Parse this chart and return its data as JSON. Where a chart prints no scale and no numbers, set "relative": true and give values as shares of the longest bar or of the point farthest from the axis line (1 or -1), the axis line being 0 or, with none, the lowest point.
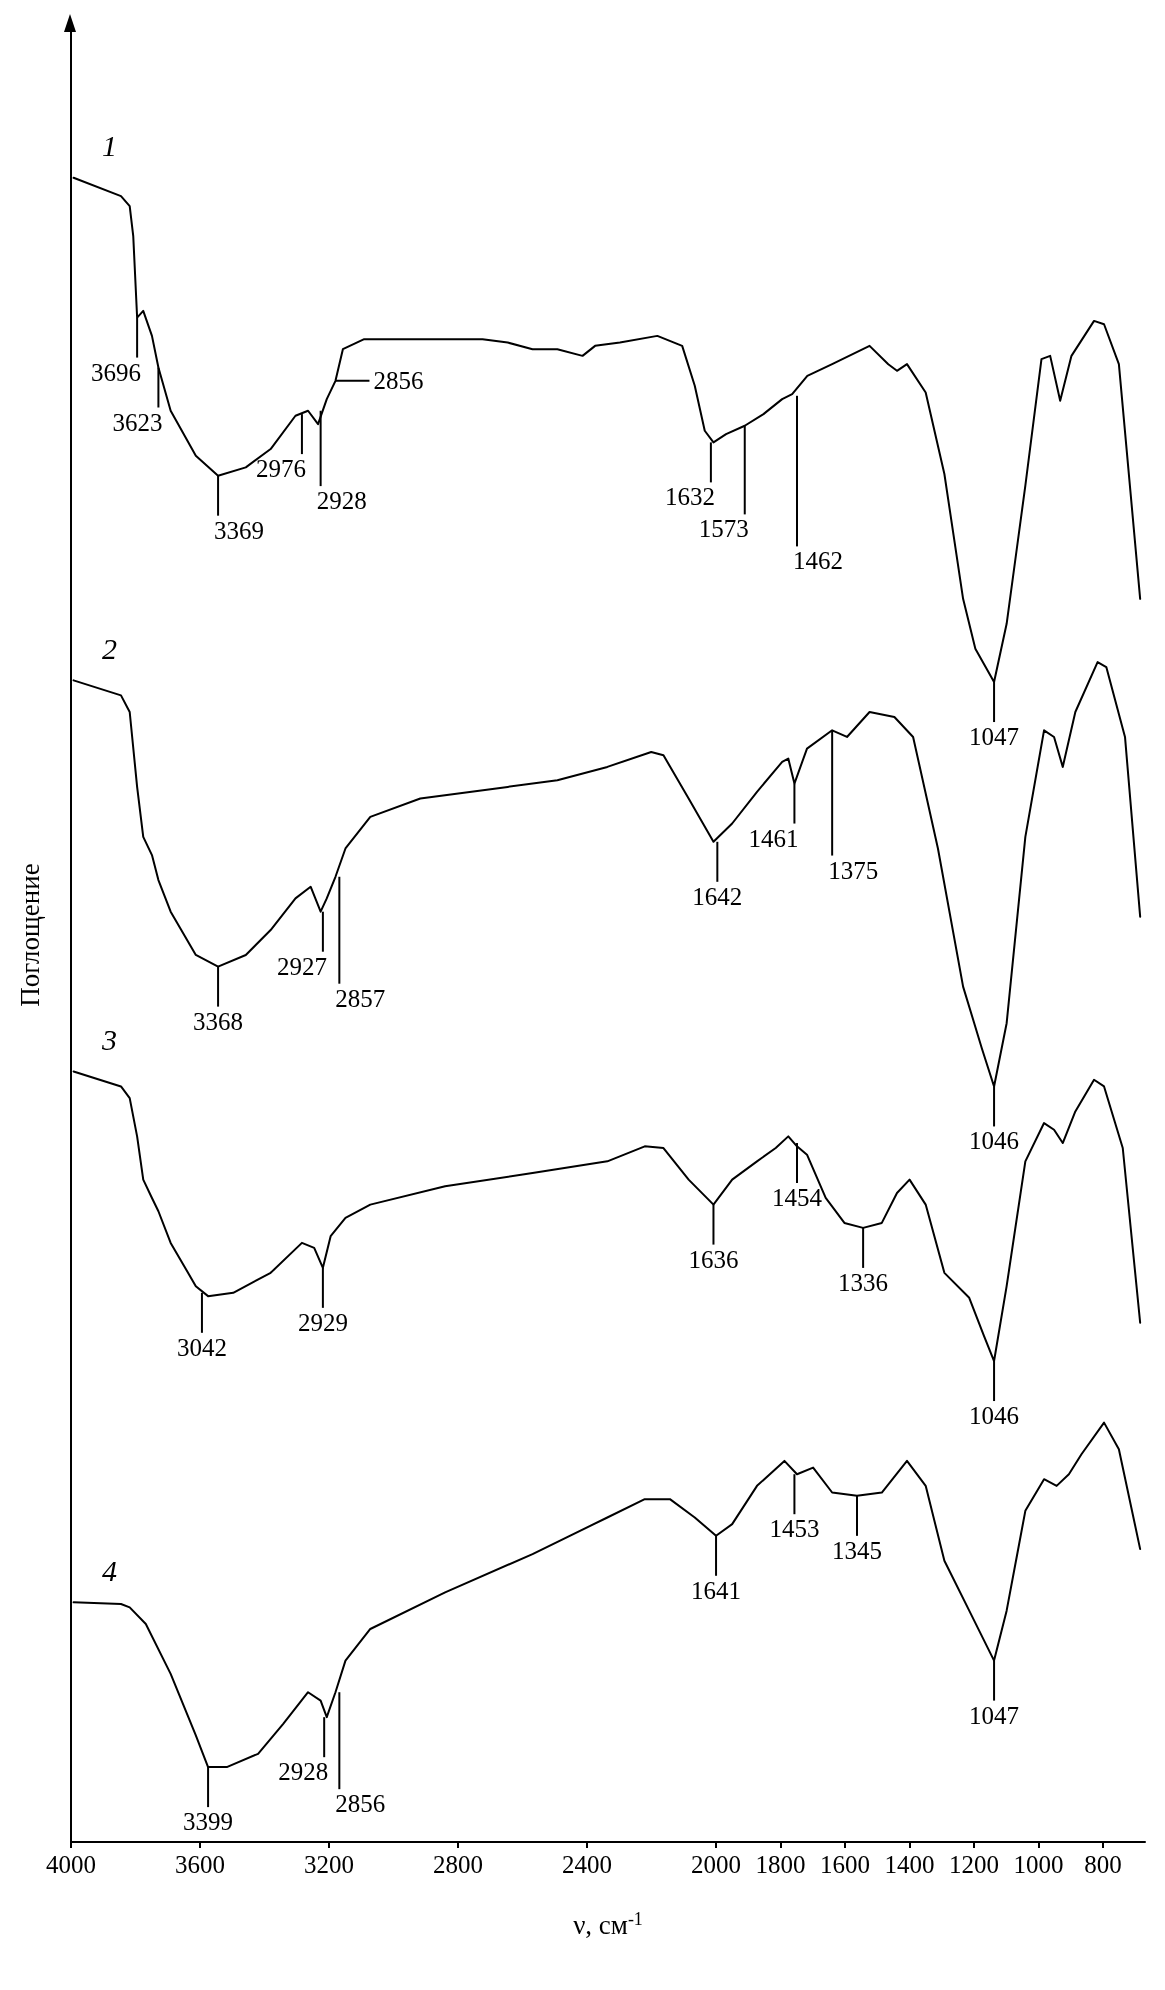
{
  "chart_data": {
    "type": "line",
    "relative": true,
    "xlabel": "ν, см$^{-1}$",
    "ylabel": "Поглощение",
    "xlim": [
      4000,
      670
    ],
    "xticks": [
      4000,
      3600,
      3200,
      2800,
      2400,
      2000,
      1800,
      1600,
      1400,
      1200,
      1000,
      800
    ],
    "grid": false,
    "legend": false,
    "series": [
      {
        "name": "1",
        "color": "#000000",
        "x": [
          3992,
          3845,
          3818,
          3807,
          3795,
          3776,
          3749,
          3729,
          3691,
          3613,
          3544,
          3458,
          3381,
          3304,
          3265,
          3234,
          3207,
          3180,
          3157,
          3091,
          2956,
          2724,
          2646,
          2569,
          2492,
          2414,
          2375,
          2298,
          2182,
          2105,
          2066,
          2035,
          2008,
          1969,
          1911,
          1853,
          1795,
          1764,
          1717,
          1640,
          1524,
          1466,
          1439,
          1408,
          1350,
          1292,
          1234,
          1196,
          1138,
          1099,
          1041,
          991,
          964,
          933,
          898,
          828,
          797,
          751,
          685
        ],
        "values": [
          1.0,
          0.989,
          0.983,
          0.965,
          0.916,
          0.92,
          0.905,
          0.886,
          0.86,
          0.833,
          0.821,
          0.826,
          0.837,
          0.857,
          0.86,
          0.852,
          0.867,
          0.878,
          0.897,
          0.903,
          0.903,
          0.903,
          0.901,
          0.897,
          0.897,
          0.893,
          0.899,
          0.901,
          0.905,
          0.899,
          0.875,
          0.848,
          0.841,
          0.846,
          0.851,
          0.858,
          0.867,
          0.87,
          0.881,
          0.888,
          0.899,
          0.888,
          0.884,
          0.888,
          0.871,
          0.822,
          0.747,
          0.717,
          0.697,
          0.732,
          0.815,
          0.891,
          0.893,
          0.866,
          0.893,
          0.914,
          0.912,
          0.888,
          0.747
        ]
      },
      {
        "name": "2",
        "color": "#000000",
        "x": [
          3992,
          3845,
          3818,
          3795,
          3776,
          3749,
          3729,
          3691,
          3613,
          3544,
          3458,
          3381,
          3304,
          3257,
          3226,
          3207,
          3180,
          3149,
          3072,
          2917,
          2646,
          2492,
          2337,
          2201,
          2163,
          2085,
          2008,
          1950,
          1873,
          1795,
          1776,
          1757,
          1718,
          1640,
          1594,
          1524,
          1447,
          1389,
          1312,
          1234,
          1176,
          1138,
          1099,
          1041,
          983,
          952,
          925,
          886,
          817,
          790,
          732,
          685
        ],
        "values": [
          0.698,
          0.689,
          0.679,
          0.634,
          0.604,
          0.593,
          0.578,
          0.559,
          0.533,
          0.526,
          0.533,
          0.548,
          0.567,
          0.574,
          0.559,
          0.567,
          0.58,
          0.597,
          0.616,
          0.627,
          0.634,
          0.638,
          0.646,
          0.655,
          0.653,
          0.627,
          0.601,
          0.612,
          0.631,
          0.649,
          0.651,
          0.636,
          0.657,
          0.668,
          0.664,
          0.679,
          0.676,
          0.664,
          0.597,
          0.514,
          0.477,
          0.454,
          0.492,
          0.604,
          0.668,
          0.664,
          0.646,
          0.679,
          0.709,
          0.706,
          0.664,
          0.556
        ]
      },
      {
        "name": "3",
        "color": "#000000",
        "x": [
          3992,
          3845,
          3818,
          3795,
          3776,
          3749,
          3729,
          3691,
          3613,
          3575,
          3497,
          3381,
          3284,
          3246,
          3219,
          3195,
          3149,
          3072,
          2840,
          2569,
          2337,
          2221,
          2163,
          2085,
          2008,
          1950,
          1873,
          1815,
          1776,
          1749,
          1718,
          1660,
          1602,
          1544,
          1486,
          1439,
          1400,
          1350,
          1292,
          1215,
          1169,
          1138,
          1099,
          1041,
          983,
          952,
          925,
          886,
          828,
          797,
          739,
          685
        ],
        "values": [
          0.463,
          0.454,
          0.447,
          0.424,
          0.398,
          0.387,
          0.379,
          0.36,
          0.334,
          0.328,
          0.33,
          0.342,
          0.36,
          0.357,
          0.345,
          0.364,
          0.375,
          0.383,
          0.394,
          0.402,
          0.409,
          0.418,
          0.417,
          0.398,
          0.383,
          0.398,
          0.409,
          0.417,
          0.424,
          0.418,
          0.413,
          0.387,
          0.372,
          0.369,
          0.372,
          0.39,
          0.398,
          0.383,
          0.342,
          0.327,
          0.304,
          0.289,
          0.334,
          0.409,
          0.432,
          0.428,
          0.42,
          0.439,
          0.458,
          0.454,
          0.417,
          0.312
        ]
      },
      {
        "name": "4",
        "color": "#000000",
        "x": [
          3992,
          3845,
          3818,
          3768,
          3691,
          3613,
          3575,
          3517,
          3420,
          3342,
          3265,
          3226,
          3207,
          3180,
          3149,
          3072,
          2840,
          2569,
          2337,
          2221,
          2143,
          2066,
          2000,
          1950,
          1873,
          1788,
          1749,
          1699,
          1640,
          1563,
          1486,
          1408,
          1350,
          1292,
          1215,
          1138,
          1099,
          1041,
          983,
          944,
          906,
          867,
          797,
          751,
          685
        ],
        "values": [
          0.144,
          0.143,
          0.141,
          0.131,
          0.101,
          0.064,
          0.045,
          0.045,
          0.053,
          0.071,
          0.09,
          0.085,
          0.075,
          0.09,
          0.109,
          0.128,
          0.15,
          0.173,
          0.195,
          0.206,
          0.206,
          0.195,
          0.184,
          0.191,
          0.214,
          0.229,
          0.221,
          0.225,
          0.21,
          0.208,
          0.21,
          0.229,
          0.214,
          0.169,
          0.139,
          0.109,
          0.139,
          0.199,
          0.218,
          0.214,
          0.221,
          0.233,
          0.252,
          0.236,
          0.176
        ]
      }
    ],
    "annotations": [
      {
        "text": "3696",
        "x": 3795,
        "y": 0.916
      },
      {
        "text": "3623",
        "x": 3729,
        "y": 0.886
      },
      {
        "text": "3369",
        "x": 3544,
        "y": 0.821
      },
      {
        "text": "2976",
        "x": 3284,
        "y": 0.858
      },
      {
        "text": "2928",
        "x": 3226,
        "y": 0.86
      },
      {
        "text": "2856",
        "x": 3180,
        "y": 0.878
      },
      {
        "text": "1632",
        "x": 2016,
        "y": 0.841
      },
      {
        "text": "1573",
        "x": 1911,
        "y": 0.851
      },
      {
        "text": "1462",
        "x": 1749,
        "y": 0.869
      },
      {
        "text": "1047",
        "x": 1138,
        "y": 0.697
      },
      {
        "text": "3368",
        "x": 3544,
        "y": 0.526
      },
      {
        "text": "2927",
        "x": 3219,
        "y": 0.559
      },
      {
        "text": "2857",
        "x": 3168,
        "y": 0.58
      },
      {
        "text": "1642",
        "x": 1996,
        "y": 0.601
      },
      {
        "text": "1461",
        "x": 1757,
        "y": 0.636
      },
      {
        "text": "1375",
        "x": 1640,
        "y": 0.668
      },
      {
        "text": "1046",
        "x": 1138,
        "y": 0.454
      },
      {
        "text": "3042",
        "x": 3594,
        "y": 0.33
      },
      {
        "text": "2929",
        "x": 3219,
        "y": 0.345
      },
      {
        "text": "1636",
        "x": 2008,
        "y": 0.383
      },
      {
        "text": "1454",
        "x": 1749,
        "y": 0.42
      },
      {
        "text": "1336",
        "x": 1544,
        "y": 0.369
      },
      {
        "text": "1046",
        "x": 1138,
        "y": 0.289
      },
      {
        "text": "3399",
        "x": 3575,
        "y": 0.045
      },
      {
        "text": "2928",
        "x": 3215,
        "y": 0.075
      },
      {
        "text": "2856",
        "x": 3168,
        "y": 0.09
      },
      {
        "text": "1641",
        "x": 2000,
        "y": 0.184
      },
      {
        "text": "1453",
        "x": 1757,
        "y": 0.221
      },
      {
        "text": "1345",
        "x": 1563,
        "y": 0.208
      },
      {
        "text": "1047",
        "x": 1138,
        "y": 0.109
      }
    ]
  }
}
